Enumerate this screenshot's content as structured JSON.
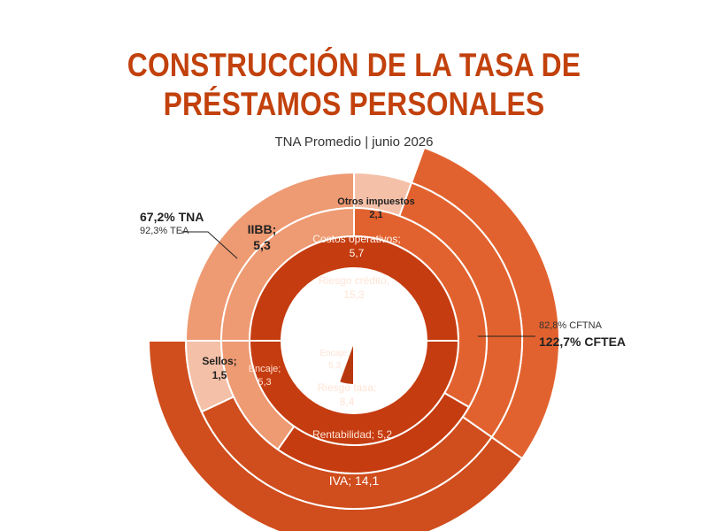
{
  "title_line1": "CONSTRUCCIÓN DE LA TASA DE",
  "title_line2": "PRÉSTAMOS PERSONALES",
  "subtitle": "TNA Promedio | junio 2026",
  "annotations": {
    "tna_left": "67,2% TNA",
    "tea_left": "92,3% TEA",
    "cftna_right": "82,8% CFTNA",
    "cftea_right": "122,7% CFTEA"
  },
  "colors": {
    "title": "#c2410c",
    "center_dark": "#8f2a0a",
    "ring_mid": "#c53c10",
    "ring_orange": "#e2622f",
    "ring_light": "#ee9a72",
    "ring_pale": "#f4c0a8",
    "ring_iva": "#d04d1d"
  },
  "chart_data": {
    "type": "sunburst",
    "title": "CONSTRUCCIÓN DE LA TASA DE PRÉSTAMOS PERSONALES",
    "subtitle": "TNA Promedio | junio 2026",
    "layers": [
      {
        "label": "Plazo fijo",
        "value": 19.9,
        "value_text": "19,9"
      },
      {
        "label": "Encaje;",
        "value": 5.3,
        "value_text": "5,3"
      },
      {
        "label": "Riesgo crédito;",
        "value": 15.3,
        "value_text": "15,3"
      },
      {
        "label": "Riesgo tasa;",
        "value": 8.4,
        "value_text": "8,4"
      },
      {
        "label": "Costos operativos;",
        "value": 5.7,
        "value_text": "5,7"
      },
      {
        "label": "Encaje;",
        "value": 5.3,
        "value_text": "5,3"
      },
      {
        "label": "Rentabilidad;",
        "value": 5.2,
        "value_text": "5,2"
      },
      {
        "label": "IIBB;",
        "value": 5.3,
        "value_text": "5,3"
      },
      {
        "label": "Otros impuestos",
        "value": 2.1,
        "value_text": "2,1"
      },
      {
        "label": "Sellos;",
        "value": 1.5,
        "value_text": "1,5"
      },
      {
        "label": "IVA;",
        "value": 14.1,
        "value_text": "14,1"
      }
    ],
    "totals": {
      "tna": 67.2,
      "tea": 92.3,
      "cftna": 82.8,
      "cftea": 122.7
    }
  }
}
